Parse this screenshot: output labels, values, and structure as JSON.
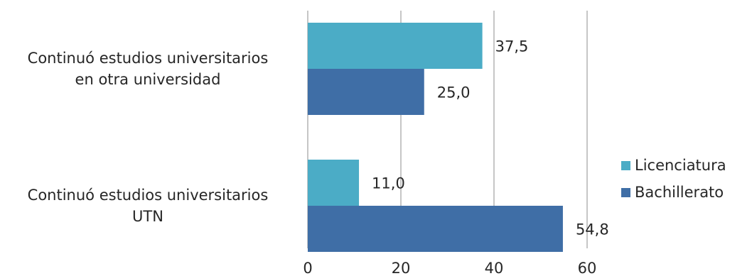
{
  "chart_data": {
    "type": "bar",
    "orientation": "horizontal",
    "categories": [
      [
        "Continuó estudios universitarios",
        "en otra universidad"
      ],
      [
        "Continuó estudios universitarios",
        "UTN"
      ]
    ],
    "series": [
      {
        "name": "Licenciatura",
        "color": "#4bacc6",
        "values": [
          37.5,
          11.0
        ],
        "labels": [
          "37,5",
          "11,0"
        ]
      },
      {
        "name": "Bachillerato",
        "color": "#3f6ea6",
        "values": [
          25.0,
          54.8
        ],
        "labels": [
          "25,0",
          "54,8"
        ]
      }
    ],
    "xlim": [
      0,
      60
    ],
    "xticks": [
      "0",
      "20",
      "40",
      "60"
    ],
    "grid": true,
    "legend": "right"
  }
}
